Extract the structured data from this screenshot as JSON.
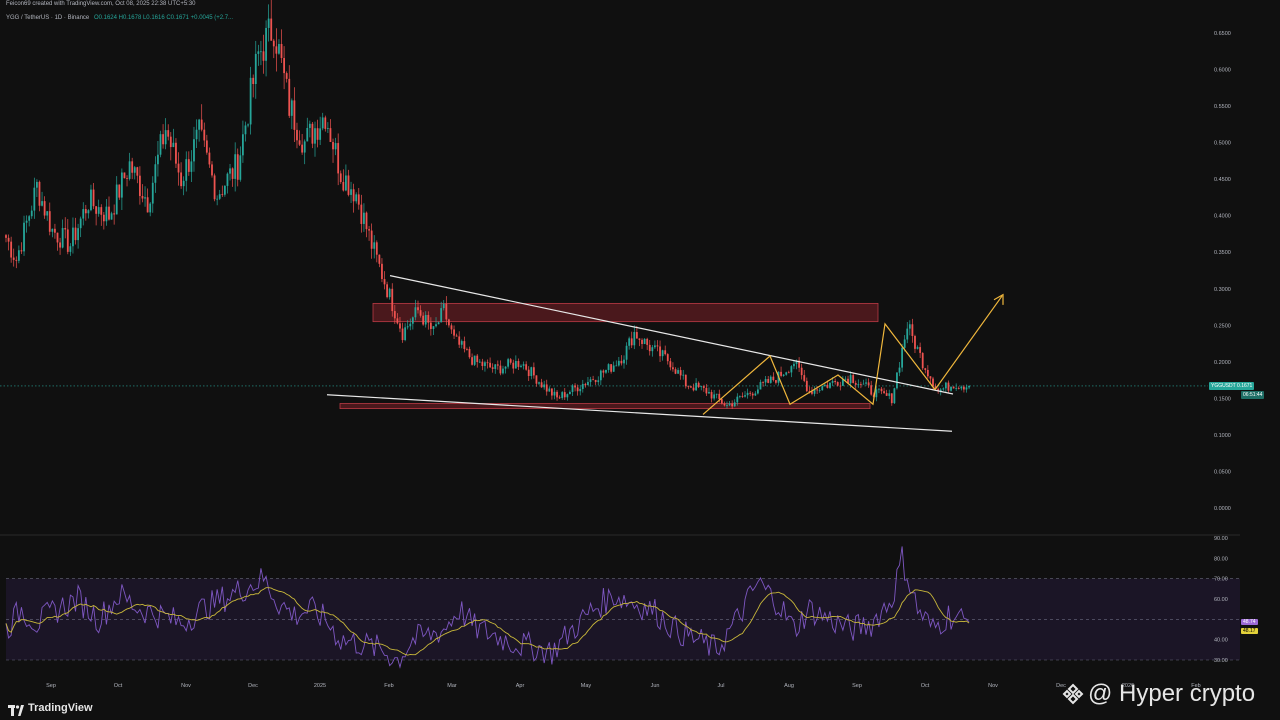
{
  "header": {
    "created_by": "Feicon69 created with TradingView.com, Oct 08, 2025 22:38 UTC+5:30",
    "symbol": "YGG / TetherUS · 1D · Binance",
    "ohlc": "O0.1624 H0.1678 L0.1616 C0.1671 +0.0045 (+2.7..."
  },
  "price_axis": {
    "ticks": [
      "0.6500",
      "0.6000",
      "0.5500",
      "0.5000",
      "0.4500",
      "0.4000",
      "0.3500",
      "0.3000",
      "0.2500",
      "0.2000",
      "0.1500",
      "0.1000",
      "0.0500",
      "0.0000"
    ],
    "current_symbol": "YGGUSDT",
    "current_price": "0.1671",
    "countdown": "06:51:44"
  },
  "rsi_axis": {
    "ticks": [
      "90.00",
      "80.00",
      "70.00",
      "60.00",
      "40.00",
      "30.00"
    ],
    "rsi_value": "48.74",
    "rsi_ma_value": "48.17"
  },
  "time_axis": {
    "labels": [
      "Sep",
      "Oct",
      "Nov",
      "Dec",
      "2025",
      "Feb",
      "Mar",
      "Apr",
      "May",
      "Jun",
      "Jul",
      "Aug",
      "Sep",
      "Oct",
      "Nov",
      "Dec",
      "2026",
      "Feb"
    ]
  },
  "colors": {
    "background": "#101010",
    "bull": "#26a69a",
    "bear": "#ef5350",
    "zone": "#7a1f26",
    "trendline": "#e8e8e8",
    "pattern": "#f0b73c",
    "rsi": "#7e57c2",
    "rsi_ma": "#c9b83a",
    "rsi_band": "#1b1526"
  },
  "chart_data": {
    "type": "candlestick",
    "symbol": "YGG / TetherUS",
    "interval": "1D",
    "last_close": 0.1671,
    "anchors": [
      [
        0,
        0.37
      ],
      [
        4,
        0.34
      ],
      [
        12,
        0.44
      ],
      [
        18,
        0.38
      ],
      [
        25,
        0.36
      ],
      [
        32,
        0.42
      ],
      [
        40,
        0.4
      ],
      [
        48,
        0.47
      ],
      [
        55,
        0.42
      ],
      [
        62,
        0.52
      ],
      [
        68,
        0.45
      ],
      [
        75,
        0.51
      ],
      [
        82,
        0.43
      ],
      [
        90,
        0.47
      ],
      [
        98,
        0.62
      ],
      [
        104,
        0.66
      ],
      [
        110,
        0.55
      ],
      [
        116,
        0.5
      ],
      [
        124,
        0.54
      ],
      [
        130,
        0.46
      ],
      [
        136,
        0.43
      ],
      [
        142,
        0.36
      ],
      [
        148,
        0.3
      ],
      [
        154,
        0.24
      ],
      [
        160,
        0.27
      ],
      [
        166,
        0.24
      ],
      [
        170,
        0.27
      ],
      [
        174,
        0.23
      ],
      [
        182,
        0.2
      ],
      [
        190,
        0.19
      ],
      [
        200,
        0.2
      ],
      [
        208,
        0.17
      ],
      [
        214,
        0.15
      ],
      [
        224,
        0.17
      ],
      [
        234,
        0.19
      ],
      [
        240,
        0.21
      ],
      [
        244,
        0.24
      ],
      [
        250,
        0.22
      ],
      [
        258,
        0.2
      ],
      [
        264,
        0.17
      ],
      [
        272,
        0.16
      ],
      [
        280,
        0.14
      ],
      [
        290,
        0.16
      ],
      [
        300,
        0.18
      ],
      [
        306,
        0.2
      ],
      [
        312,
        0.16
      ],
      [
        320,
        0.17
      ],
      [
        328,
        0.18
      ],
      [
        336,
        0.16
      ],
      [
        344,
        0.15
      ],
      [
        350,
        0.25
      ],
      [
        356,
        0.2
      ],
      [
        362,
        0.16
      ],
      [
        368,
        0.17
      ],
      [
        374,
        0.1671
      ]
    ],
    "rsi": {
      "last": 48.74,
      "ma_last": 48.17,
      "overbought": 70,
      "oversold": 30,
      "anchors": [
        [
          0,
          45
        ],
        [
          6,
          55
        ],
        [
          12,
          48
        ],
        [
          20,
          55
        ],
        [
          28,
          60
        ],
        [
          36,
          50
        ],
        [
          44,
          62
        ],
        [
          52,
          55
        ],
        [
          60,
          52
        ],
        [
          68,
          48
        ],
        [
          76,
          55
        ],
        [
          84,
          60
        ],
        [
          92,
          65
        ],
        [
          100,
          70
        ],
        [
          106,
          58
        ],
        [
          112,
          52
        ],
        [
          118,
          55
        ],
        [
          124,
          50
        ],
        [
          130,
          40
        ],
        [
          138,
          38
        ],
        [
          146,
          35
        ],
        [
          152,
          30
        ],
        [
          158,
          40
        ],
        [
          164,
          42
        ],
        [
          170,
          45
        ],
        [
          176,
          55
        ],
        [
          182,
          46
        ],
        [
          190,
          42
        ],
        [
          198,
          38
        ],
        [
          206,
          36
        ],
        [
          212,
          34
        ],
        [
          220,
          45
        ],
        [
          228,
          55
        ],
        [
          236,
          62
        ],
        [
          244,
          58
        ],
        [
          252,
          54
        ],
        [
          260,
          45
        ],
        [
          268,
          40
        ],
        [
          276,
          35
        ],
        [
          284,
          50
        ],
        [
          292,
          68
        ],
        [
          300,
          58
        ],
        [
          306,
          45
        ],
        [
          312,
          55
        ],
        [
          320,
          50
        ],
        [
          328,
          45
        ],
        [
          336,
          48
        ],
        [
          344,
          60
        ],
        [
          348,
          80
        ],
        [
          354,
          55
        ],
        [
          360,
          45
        ],
        [
          366,
          52
        ],
        [
          374,
          48.74
        ]
      ]
    },
    "annotations": [
      {
        "type": "zone",
        "label": "resistance",
        "from": 0.255,
        "to": 0.28
      },
      {
        "type": "zone",
        "label": "support",
        "from": 0.136,
        "to": 0.143
      },
      {
        "type": "line",
        "label": "descending resistance",
        "p1": [
          0.318
        ],
        "p2": [
          0.158
        ]
      },
      {
        "type": "line",
        "label": "descending support",
        "p1": [
          0.155
        ],
        "p2": [
          0.105
        ]
      },
      {
        "type": "arrow",
        "label": "projected breakout",
        "target": 0.29
      }
    ]
  }
}
